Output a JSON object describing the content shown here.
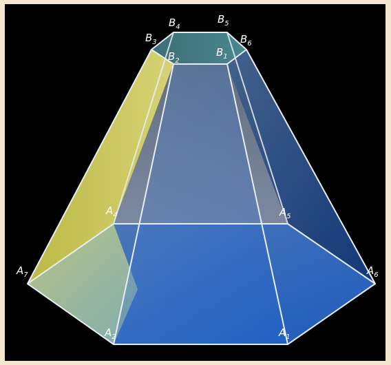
{
  "figure": {
    "colors": {
      "frame": "#f4e6cf",
      "background": "#000000",
      "edge": "#e8eef4",
      "left_face": "#d8d86a",
      "front_face": "#2e6cc8",
      "right_face": "#1f4f96",
      "top_face": "#3f7a82",
      "back_face": "#7a8fa8"
    },
    "vertices": {
      "A1": {
        "letter": "A",
        "index": "1"
      },
      "A2": {
        "letter": "A",
        "index": "2"
      },
      "A4": {
        "letter": "A",
        "index": "4"
      },
      "A5": {
        "letter": "A",
        "index": "5"
      },
      "A6": {
        "letter": "A",
        "index": "6"
      },
      "A7": {
        "letter": "A",
        "index": "7"
      },
      "B1": {
        "letter": "B",
        "index": "1"
      },
      "B2": {
        "letter": "B",
        "index": "2"
      },
      "B3": {
        "letter": "B",
        "index": "3"
      },
      "B4": {
        "letter": "B",
        "index": "4"
      },
      "B5": {
        "letter": "B",
        "index": "5"
      },
      "B6": {
        "letter": "B",
        "index": "6"
      }
    }
  }
}
